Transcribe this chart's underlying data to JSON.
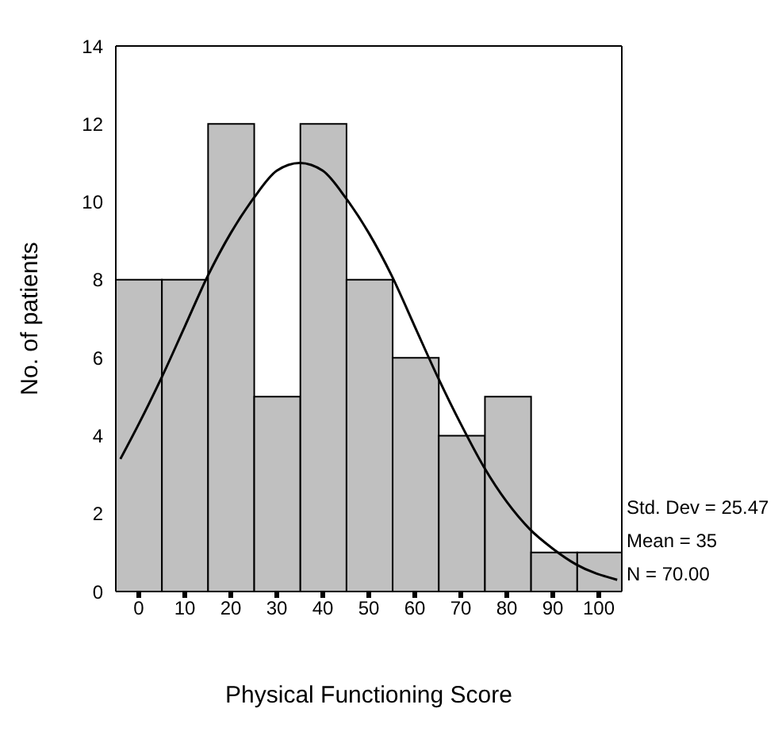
{
  "chart_data": {
    "type": "histogram",
    "xlabel": "Physical Functioning Score",
    "ylabel": "No. of patients",
    "bins": [
      -5,
      5,
      15,
      25,
      35,
      45,
      55,
      65,
      75,
      85,
      95,
      105
    ],
    "values": [
      8,
      8,
      12,
      5,
      12,
      8,
      6,
      4,
      5,
      1,
      1
    ],
    "color": "#c0c0c0",
    "series": [
      {
        "type": "line",
        "color": "#000000",
        "x": [
          -4,
          0,
          5,
          10,
          15,
          20,
          25,
          30,
          35,
          40,
          45,
          50,
          55,
          60,
          65,
          70,
          75,
          80,
          85,
          90,
          95,
          104
        ],
        "values": [
          3.4,
          4.3,
          5.5,
          6.8,
          8.1,
          9.2,
          10.1,
          10.8,
          11.0,
          10.8,
          10.1,
          9.2,
          8.1,
          6.8,
          5.5,
          4.3,
          3.2,
          2.3,
          1.6,
          1.1,
          0.7,
          0.3
        ]
      }
    ],
    "xlim": [
      -5,
      105
    ],
    "xticks": [
      0,
      10,
      20,
      30,
      40,
      50,
      60,
      70,
      80,
      90,
      100
    ],
    "ylim": [
      0,
      14
    ],
    "yticks": [
      0,
      2,
      4,
      6,
      8,
      10,
      12,
      14
    ],
    "annotations": [
      "Std. Dev = 25.47",
      "Mean = 35",
      "N = 70.00"
    ]
  }
}
